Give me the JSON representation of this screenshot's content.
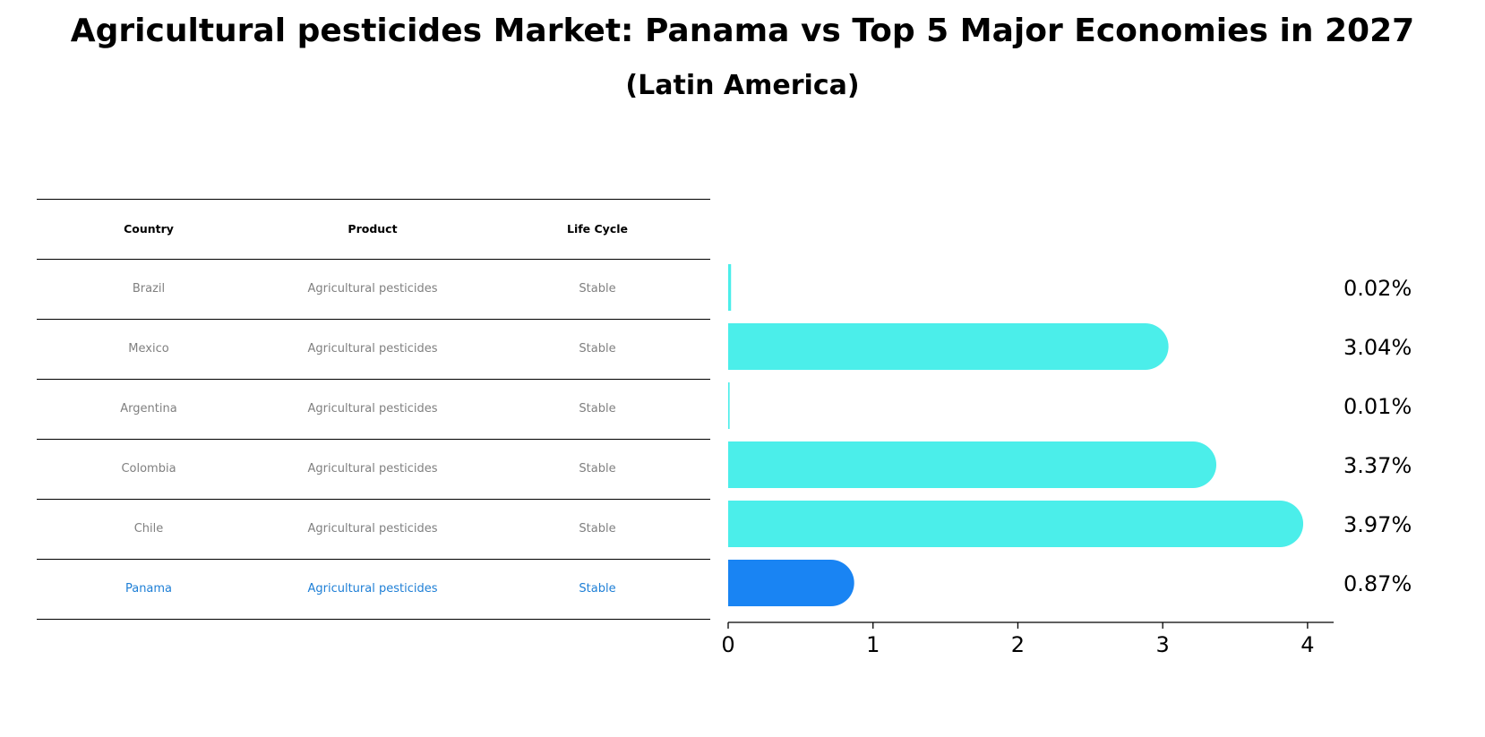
{
  "title": "Agricultural pesticides Market: Panama vs Top 5 Major Economies in 2027",
  "subtitle": "(Latin America)",
  "table": {
    "headers": [
      "Country",
      "Product",
      "Life Cycle"
    ],
    "rows": [
      {
        "country": "Brazil",
        "product": "Agricultural pesticides",
        "life_cycle": "Stable"
      },
      {
        "country": "Mexico",
        "product": "Agricultural pesticides",
        "life_cycle": "Stable"
      },
      {
        "country": "Argentina",
        "product": "Agricultural pesticides",
        "life_cycle": "Stable"
      },
      {
        "country": "Colombia",
        "product": "Agricultural pesticides",
        "life_cycle": "Stable"
      },
      {
        "country": "Chile",
        "product": "Agricultural pesticides",
        "life_cycle": "Stable"
      },
      {
        "country": "Panama",
        "product": "Agricultural pesticides",
        "life_cycle": "Stable"
      }
    ]
  },
  "chart_data": {
    "type": "bar",
    "orientation": "horizontal",
    "categories": [
      "Brazil",
      "Mexico",
      "Argentina",
      "Colombia",
      "Chile",
      "Panama"
    ],
    "values": [
      0.02,
      3.04,
      0.01,
      3.37,
      3.97,
      0.87
    ],
    "value_labels": [
      "0.02%",
      "3.04%",
      "0.01%",
      "3.37%",
      "3.97%",
      "0.87%"
    ],
    "highlight": "Panama",
    "xlim": [
      0,
      4.18
    ],
    "xticks": [
      0,
      1,
      2,
      3,
      4
    ],
    "xlabel": "",
    "ylabel": "",
    "grid": false,
    "colors": {
      "default": "#4beeea",
      "highlight": "#1984f3"
    }
  }
}
